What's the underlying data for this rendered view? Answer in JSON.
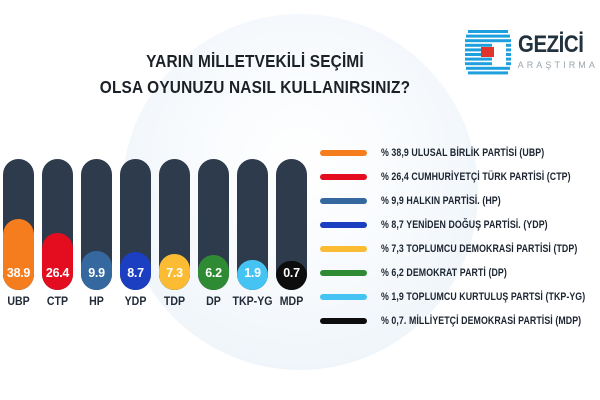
{
  "title": {
    "line1": "YARIN MİLLETVEKİLİ SEÇİMİ",
    "line2": "OLSA OYUNUZU NASIL KULLANIRSINIZ?"
  },
  "logo": {
    "name": "GEZİCİ",
    "subtitle": "ARAŞTIRMA",
    "brand_blue": "#1da0dd",
    "brand_red": "#e0342c",
    "text_color": "#22333f",
    "subtitle_color": "#9aa3ab"
  },
  "chart_data": {
    "type": "bar",
    "title": "YARIN MİLLETVEKİLİ SEÇİMİ OLSA OYUNUZU NASIL KULLANIRSINIZ?",
    "categories": [
      "UBP",
      "CTP",
      "HP",
      "YDP",
      "TDP",
      "DP",
      "TKP-YG",
      "MDP"
    ],
    "values": [
      38.9,
      26.4,
      9.9,
      8.7,
      7.3,
      6.2,
      1.9,
      0.7
    ],
    "value_labels": [
      "38.9",
      "26.4",
      "9.9",
      "8.7",
      "7.3",
      "6.2",
      "1.9",
      "0.7"
    ],
    "colors": [
      "#f57d1e",
      "#e30d1f",
      "#35689f",
      "#1c3ec0",
      "#fbbc34",
      "#2f8b33",
      "#45c3f2",
      "#0d0d0d"
    ],
    "track_color": "#2d3b4c",
    "ylim": [
      0,
      100
    ],
    "grid": false,
    "legend_position": "right",
    "legend": [
      {
        "label": "% 38,9 ULUSAL BİRLİK PARTİSİ (UBP)",
        "color": "#f57d1e"
      },
      {
        "label": "% 26,4 CUMHURİYETÇİ TÜRK PARTİSİ (CTP)",
        "color": "#e30d1f"
      },
      {
        "label": "% 9,9 HALKIN PARTİSİ. (HP)",
        "color": "#35689f"
      },
      {
        "label": "% 8,7 YENİDEN DOĞUŞ PARTİSİ. (YDP)",
        "color": "#1c3ec0"
      },
      {
        "label": "% 7,3 TOPLUMCU DEMOKRASİ PARTİSİ (TDP)",
        "color": "#fbbc34"
      },
      {
        "label": "% 6,2 DEMOKRAT PARTİ (DP)",
        "color": "#2f8b33"
      },
      {
        "label": "% 1,9 TOPLUMCU KURTULUŞ PARTSİ (TKP-YG)",
        "color": "#45c3f2"
      },
      {
        "label": "% 0,7. MİLLİYETÇİ DEMOKRASİ PARTİSİ (MDP)",
        "color": "#0d0d0d"
      }
    ]
  }
}
